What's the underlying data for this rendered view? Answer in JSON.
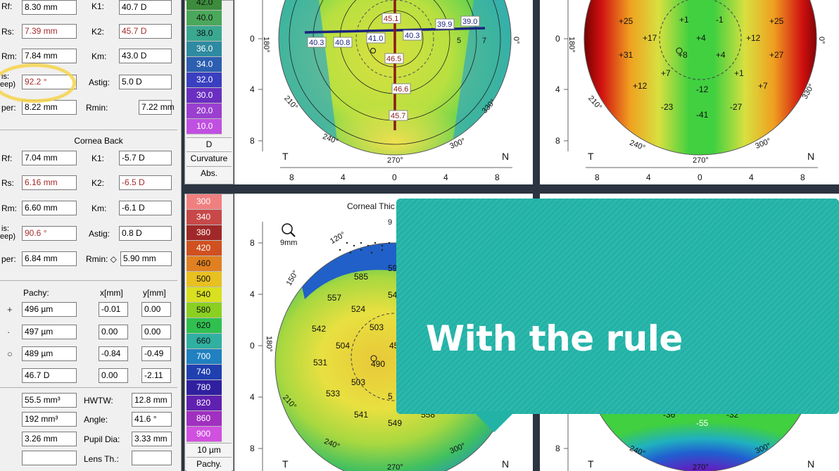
{
  "front": {
    "rf": "8.30 mm",
    "rs": "7.39 mm",
    "rm": "7.84 mm",
    "axis": "92.2 °",
    "rper": "8.22 mm",
    "k1": "40.7 D",
    "k2": "45.7 D",
    "km": "43.0 D",
    "astig": "5.0 D",
    "rmin": "7.22 mm",
    "labels": {
      "rf": "Rf:",
      "rs": "Rs:",
      "rm": "Rm:",
      "axis1": "is:",
      "axis2": "eep)",
      "rper": "per:",
      "k1": "K1:",
      "k2": "K2:",
      "km": "Km:",
      "astig": "Astig:",
      "rmin": "Rmin:"
    }
  },
  "back": {
    "section": "Cornea Back",
    "rf": "7.04 mm",
    "rs": "6.16 mm",
    "rm": "6.60 mm",
    "axis": "90.6 °",
    "rper": "6.84 mm",
    "k1": "-5.7 D",
    "k2": "-6.5 D",
    "km": "-6.1 D",
    "astig": "0.8 D",
    "rmin": "5.90 mm",
    "labels": {
      "rf": "Rf:",
      "rs": "Rs:",
      "rm": "Rm:",
      "axis1": "is:",
      "axis2": "eep)",
      "rper": "per:",
      "k1": "K1:",
      "k2": "K2:",
      "km": "Km:",
      "astig": "Astig:",
      "rmin": "Rmin: ◇"
    }
  },
  "pachy": {
    "header": "Pachy:",
    "xh": "x[mm]",
    "yh": "y[mm]",
    "rows": [
      {
        "sym": "+",
        "val": "496 µm",
        "x": "-0.01",
        "y": "0.00"
      },
      {
        "sym": "·",
        "val": "497 µm",
        "x": "0.00",
        "y": "0.00"
      },
      {
        "sym": "○",
        "val": "489 µm",
        "x": "-0.84",
        "y": "-0.49"
      },
      {
        "sym": "",
        "val": "46.7 D",
        "x": "0.00",
        "y": "-2.11"
      }
    ]
  },
  "misc": {
    "vol": "55.5 mm³",
    "hwtw_l": "HWTW:",
    "hwtw": "12.8 mm",
    "ang_v": "192 mm³",
    "angle_l": "Angle:",
    "angle": "41.6 °",
    "dep": "3.26 mm",
    "pupil_l": "Pupil Dia:",
    "pupil": "3.33 mm",
    "lens_l": "Lens Th.:"
  },
  "curv_scale": {
    "values": [
      "42.0",
      "40.0",
      "38.0",
      "36.0",
      "34.0",
      "32.0",
      "30.0",
      "20.0",
      "10.0"
    ],
    "colors": [
      "#3c8c3c",
      "#4aa85a",
      "#3aa890",
      "#2e8aa0",
      "#2c5fb0",
      "#3a3fc0",
      "#6a2fc0",
      "#9a3fd0",
      "#c050e0"
    ],
    "unit": "D",
    "label": "Curvature",
    "abs": "Abs."
  },
  "pachy_scale": {
    "values": [
      "300",
      "340",
      "380",
      "420",
      "460",
      "500",
      "540",
      "580",
      "620",
      "660",
      "700",
      "740",
      "780",
      "820",
      "860",
      "900"
    ],
    "colors": [
      "#f08080",
      "#c84848",
      "#a02828",
      "#d05020",
      "#e08020",
      "#e8c020",
      "#d8e020",
      "#8ad020",
      "#30c050",
      "#30b0a0",
      "#2080c0",
      "#2040b0",
      "#3020a0",
      "#6020b0",
      "#a030c0",
      "#d050e0"
    ],
    "unit": "10 µm",
    "label": "Pachy."
  },
  "axes": {
    "y_ticks": [
      "0",
      "4",
      "8"
    ],
    "x_ticks": [
      "8",
      "4",
      "0",
      "4",
      "8"
    ],
    "T": "T",
    "N": "N",
    "a180": "180°",
    "a0": "0°",
    "a210": "210°",
    "a240": "240°",
    "a270": "270°",
    "a300": "300°",
    "a330": "330°",
    "a120": "120°",
    "a150": "150°",
    "a90": "9",
    "mm9": "9mm"
  },
  "map1": {
    "labels": [
      "45.1",
      "39.9",
      "39.0",
      "40.3",
      "40.8",
      "41.0",
      "40.3",
      "46.5",
      "46.6",
      "45.7"
    ],
    "ticks": [
      "5",
      "7"
    ]
  },
  "map2": {
    "labels": [
      "+25",
      "+1",
      "-1",
      "+25",
      "+17",
      "+4",
      "+12",
      "+31",
      "+8",
      "+4",
      "+27",
      "+7",
      "+1",
      "+12",
      "-12",
      "+7",
      "-23",
      "-27",
      "-41"
    ]
  },
  "map3": {
    "title": "Corneal Thic",
    "labels": [
      "585",
      "59",
      "557",
      "54",
      "524",
      "542",
      "503",
      "504",
      "45",
      "531",
      "490",
      "503",
      "533",
      "5",
      "541",
      "549",
      "558"
    ]
  },
  "map4": {
    "labels": [
      "-36",
      "-55",
      "-32"
    ]
  },
  "overlay": {
    "text": "With the rule"
  }
}
